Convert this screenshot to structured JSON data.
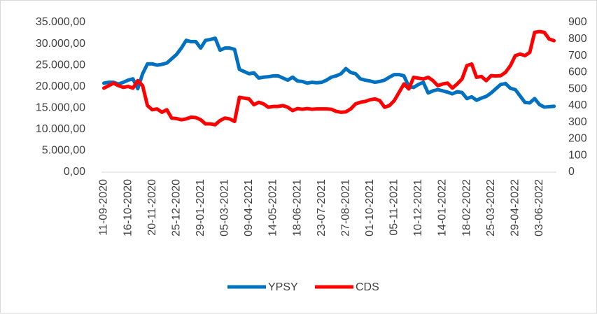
{
  "chart_data": {
    "type": "line",
    "categories": [
      "11-09-2020",
      null,
      null,
      null,
      null,
      "16-10-2020",
      null,
      null,
      null,
      null,
      "20-11-2020",
      null,
      null,
      null,
      null,
      "25-12-2020",
      null,
      null,
      null,
      null,
      "29-01-2021",
      null,
      null,
      null,
      null,
      "05-03-2021",
      null,
      null,
      null,
      null,
      "09-04-2021",
      null,
      null,
      null,
      null,
      "14-05-2021",
      null,
      null,
      null,
      null,
      "18-06-2021",
      null,
      null,
      null,
      null,
      "23-07-2021",
      null,
      null,
      null,
      null,
      "27-08-2021",
      null,
      null,
      null,
      null,
      "01-10-2021",
      null,
      null,
      null,
      null,
      "05-11-2021",
      null,
      null,
      null,
      null,
      "10-12-2021",
      null,
      null,
      null,
      null,
      "14-01-2022",
      null,
      null,
      null,
      null,
      "18-02-2022",
      null,
      null,
      null,
      null,
      "25-03-2022",
      null,
      null,
      null,
      null,
      "29-04-2022",
      null,
      null,
      null,
      null,
      "03-06-2022",
      null,
      null,
      null
    ],
    "series": [
      {
        "name": "YPSY",
        "color": "#0070c0",
        "axis": "y",
        "values": [
          20800,
          21000,
          21000,
          20600,
          21000,
          21500,
          21800,
          19500,
          23000,
          25300,
          25300,
          25000,
          25200,
          25500,
          26500,
          27500,
          29000,
          30800,
          30500,
          30500,
          29000,
          30800,
          31000,
          31300,
          28500,
          29000,
          29000,
          28700,
          24000,
          23500,
          23000,
          23200,
          22000,
          22200,
          22300,
          22500,
          22500,
          22000,
          21500,
          22200,
          21300,
          21200,
          20800,
          21000,
          20900,
          21000,
          21500,
          22200,
          22500,
          23000,
          24200,
          23300,
          23000,
          21800,
          21500,
          21300,
          21000,
          21200,
          21500,
          22200,
          22800,
          22800,
          22500,
          20000,
          19800,
          20500,
          21000,
          18500,
          19000,
          19300,
          19000,
          18700,
          18300,
          18800,
          18600,
          17200,
          17600,
          16800,
          17300,
          17700,
          18500,
          19500,
          20500,
          20700,
          19600,
          19300,
          17800,
          16300,
          16200,
          17200,
          15800,
          15200,
          15300,
          15400
        ]
      },
      {
        "name": "CDS",
        "color": "#ff0000",
        "axis": "y2",
        "values": [
          505,
          520,
          535,
          520,
          510,
          515,
          505,
          550,
          520,
          400,
          375,
          380,
          360,
          375,
          325,
          322,
          315,
          320,
          330,
          328,
          315,
          290,
          290,
          285,
          310,
          325,
          320,
          305,
          450,
          445,
          440,
          405,
          420,
          410,
          390,
          395,
          395,
          400,
          390,
          370,
          382,
          378,
          382,
          378,
          380,
          380,
          380,
          378,
          365,
          360,
          362,
          380,
          410,
          420,
          425,
          435,
          440,
          430,
          390,
          400,
          430,
          480,
          530,
          500,
          570,
          565,
          560,
          570,
          550,
          520,
          530,
          535,
          505,
          530,
          560,
          640,
          650,
          570,
          575,
          550,
          580,
          578,
          580,
          600,
          640,
          700,
          710,
          700,
          720,
          840,
          845,
          840,
          800,
          790
        ]
      }
    ],
    "ylim": [
      0,
      35000
    ],
    "yticks": [
      {
        "value": 0,
        "label": "0,00"
      },
      {
        "value": 5000,
        "label": "5.000,00"
      },
      {
        "value": 10000,
        "label": "10.000,00"
      },
      {
        "value": 15000,
        "label": "15.000,00"
      },
      {
        "value": 20000,
        "label": "20.000,00"
      },
      {
        "value": 25000,
        "label": "25.000,00"
      },
      {
        "value": 30000,
        "label": "30.000,00"
      },
      {
        "value": 35000,
        "label": "35.000,00"
      }
    ],
    "y2lim": [
      0,
      900
    ],
    "y2ticks": [
      0,
      100,
      200,
      300,
      400,
      500,
      600,
      700,
      800,
      900
    ],
    "legend": "bottom"
  }
}
